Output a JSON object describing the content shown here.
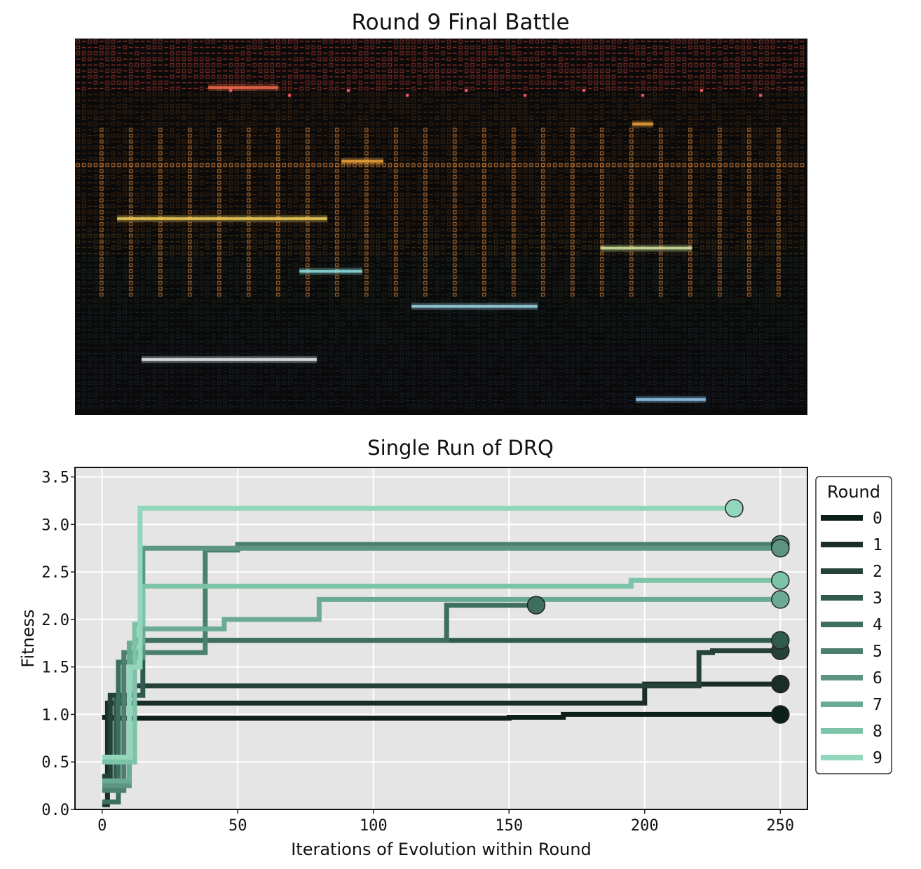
{
  "battle": {
    "title": "Round 9 Final Battle",
    "band_colors": [
      "#e24a3b",
      "#ef8a2e",
      "#e8c34a",
      "#4f9a6a",
      "#2f8a8f",
      "#3c6fa8"
    ]
  },
  "chart_data": {
    "type": "line",
    "title": "Single Run of DRQ",
    "xlabel": "Iterations of Evolution within Round",
    "ylabel": "Fitness",
    "xlim": [
      -10,
      260
    ],
    "ylim": [
      0.0,
      3.6
    ],
    "xticks": [
      "0",
      "50",
      "100",
      "150",
      "200",
      "250"
    ],
    "yticks": [
      "0.0",
      "0.5",
      "1.0",
      "1.5",
      "2.0",
      "2.5",
      "3.0",
      "3.5"
    ],
    "grid": true,
    "legend_title": "Round",
    "legend_position": "right",
    "series": [
      {
        "name": "0",
        "color": "#0d1f1a",
        "x": [
          0,
          4,
          4,
          10,
          10,
          150,
          150,
          170,
          170,
          250
        ],
        "y": [
          0.97,
          0.97,
          0.96,
          0.96,
          0.96,
          0.96,
          0.97,
          0.97,
          1.0,
          1.0
        ]
      },
      {
        "name": "1",
        "color": "#1a2e27",
        "x": [
          0,
          2,
          2,
          200,
          200,
          250
        ],
        "y": [
          0.05,
          0.05,
          1.12,
          1.12,
          1.32,
          1.32
        ]
      },
      {
        "name": "2",
        "color": "#24413a",
        "x": [
          0,
          3,
          3,
          12,
          12,
          220,
          220,
          225,
          225,
          250
        ],
        "y": [
          0.35,
          0.35,
          1.2,
          1.2,
          1.3,
          1.3,
          1.65,
          1.65,
          1.67,
          1.67
        ]
      },
      {
        "name": "3",
        "color": "#2f5a4d",
        "x": [
          0,
          5,
          5,
          10,
          10,
          15,
          15,
          250
        ],
        "y": [
          0.3,
          0.3,
          1.15,
          1.15,
          1.2,
          1.2,
          1.78,
          1.78
        ]
      },
      {
        "name": "4",
        "color": "#3d6e5f",
        "x": [
          0,
          6,
          6,
          12,
          12,
          127,
          127,
          160
        ],
        "y": [
          0.08,
          0.08,
          1.55,
          1.55,
          1.78,
          1.78,
          2.15,
          2.15
        ]
      },
      {
        "name": "5",
        "color": "#4b8070",
        "x": [
          0,
          8,
          8,
          38,
          38,
          50,
          50,
          250
        ],
        "y": [
          0.2,
          0.2,
          1.65,
          1.65,
          2.73,
          2.73,
          2.79,
          2.79
        ]
      },
      {
        "name": "6",
        "color": "#5c9683",
        "x": [
          0,
          10,
          10,
          15,
          15,
          250
        ],
        "y": [
          0.25,
          0.25,
          1.6,
          1.6,
          2.75,
          2.75
        ]
      },
      {
        "name": "7",
        "color": "#6bab94",
        "x": [
          0,
          10,
          10,
          15,
          15,
          45,
          45,
          80,
          80,
          250
        ],
        "y": [
          0.3,
          0.3,
          1.75,
          1.75,
          1.9,
          1.9,
          2.0,
          2.0,
          2.21,
          2.21
        ]
      },
      {
        "name": "8",
        "color": "#7cc3a8",
        "x": [
          0,
          12,
          12,
          15,
          15,
          195,
          195,
          250
        ],
        "y": [
          0.5,
          0.5,
          1.95,
          1.95,
          2.35,
          2.35,
          2.41,
          2.41
        ]
      },
      {
        "name": "9",
        "color": "#92d7bb",
        "x": [
          0,
          10,
          10,
          14,
          14,
          233
        ],
        "y": [
          0.55,
          0.55,
          1.5,
          1.5,
          3.17,
          3.17
        ]
      }
    ]
  }
}
